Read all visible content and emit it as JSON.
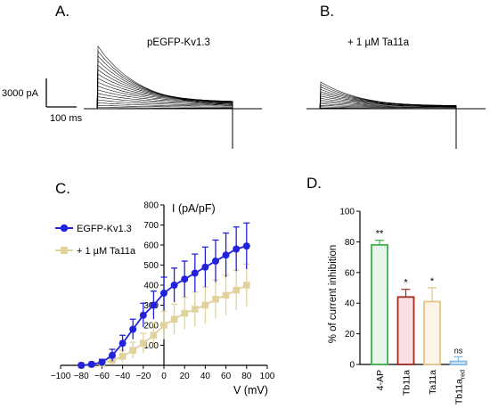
{
  "panels": {
    "a": {
      "letter": "A.",
      "title": "pEGFP-Kv1.3"
    },
    "b": {
      "letter": "B.",
      "title": "+ 1 µM Ta11a"
    },
    "c": {
      "letter": "C."
    },
    "d": {
      "letter": "D."
    }
  },
  "scale_bar": {
    "current": "3000 pA",
    "time": "100 ms"
  },
  "chart_data": [
    {
      "type": "line",
      "panel": "C",
      "ylabel": "I (pA/pF)",
      "xlabel": "V (mV)",
      "xlim": [
        -100,
        100
      ],
      "ylim": [
        0,
        800
      ],
      "xticks": [
        -100,
        -80,
        -60,
        -40,
        -20,
        0,
        20,
        40,
        60,
        80,
        100
      ],
      "yticks": [
        0,
        100,
        200,
        300,
        400,
        500,
        600,
        700,
        800
      ],
      "xtick_labels": [
        "−100",
        "−80",
        "−60",
        "−40",
        "−20",
        "0",
        "20",
        "40",
        "60",
        "80",
        "100"
      ],
      "ytick_labels": [
        "",
        "100",
        "200",
        "300",
        "400",
        "500",
        "600",
        "700",
        "800"
      ],
      "legend_position": "top-left",
      "x": [
        -80,
        -70,
        -60,
        -50,
        -40,
        -30,
        -20,
        -10,
        0,
        10,
        20,
        30,
        40,
        50,
        60,
        70,
        80
      ],
      "series": [
        {
          "name": "EGFP-Kv1.3",
          "color": "#2222dd",
          "marker": "circle",
          "values": [
            0,
            5,
            15,
            50,
            110,
            180,
            250,
            300,
            360,
            400,
            430,
            460,
            490,
            520,
            550,
            580,
            595
          ],
          "errors": [
            5,
            8,
            15,
            30,
            40,
            50,
            60,
            70,
            80,
            85,
            90,
            95,
            100,
            105,
            110,
            110,
            115
          ]
        },
        {
          "name": "+ 1 µM Ta11a",
          "color": "#e2d29e",
          "marker": "square",
          "values": [
            0,
            5,
            10,
            25,
            45,
            75,
            110,
            150,
            200,
            230,
            260,
            280,
            300,
            330,
            350,
            375,
            400
          ],
          "errors": [
            5,
            6,
            10,
            20,
            30,
            40,
            50,
            60,
            70,
            75,
            80,
            85,
            90,
            95,
            100,
            100,
            105
          ]
        }
      ]
    },
    {
      "type": "bar",
      "panel": "D",
      "ylabel": "% of current inhibition",
      "ylim": [
        0,
        100
      ],
      "yticks": [
        0,
        20,
        40,
        60,
        80,
        100
      ],
      "categories": [
        "4-AP",
        "Tb11a",
        "Ta11a",
        "Tb11a"
      ],
      "category_subscripts": [
        "",
        "",
        "",
        "red"
      ],
      "values": [
        78,
        44,
        41,
        2
      ],
      "errors": [
        3,
        5,
        9,
        3
      ],
      "significance": [
        "**",
        "*",
        "*",
        "ns"
      ],
      "edge_colors": [
        "#3fb24b",
        "#9e2a24",
        "#e2c58a",
        "#7fb8e6"
      ],
      "fill_colors": [
        "#e6f6ea",
        "#f9e0e4",
        "#fdf3e6",
        "#e6f0fa"
      ]
    }
  ]
}
